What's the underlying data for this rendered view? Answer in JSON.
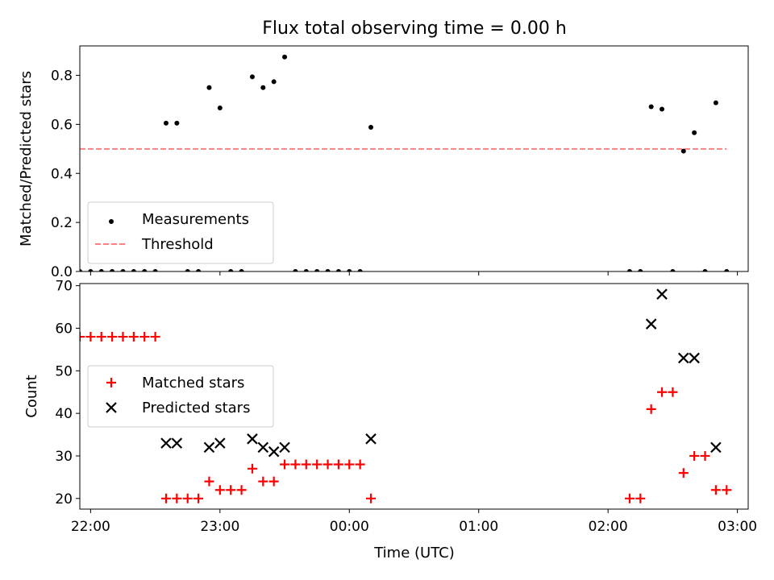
{
  "figure": {
    "title": "Flux total observing time = 0.00 h"
  },
  "chart_data": [
    {
      "type": "scatter",
      "ylabel": "Matched/Predicted stars",
      "xlim": [
        "21:55",
        "03:05"
      ],
      "ylim": [
        0.0,
        0.92
      ],
      "yticks": [
        0.0,
        0.2,
        0.4,
        0.6,
        0.8
      ],
      "ytick_labels": [
        "0.0",
        "0.2",
        "0.4",
        "0.6",
        "0.8"
      ],
      "xtick_labels_visible": false,
      "legend_position": "lower left",
      "threshold": {
        "name": "Threshold",
        "value": 0.5,
        "x": [
          "21:55",
          "02:55"
        ],
        "color": "#ff8080",
        "style": "dashed"
      },
      "series": [
        {
          "name": "Measurements",
          "color": "#000000",
          "marker": "dot",
          "points": [
            [
              "21:55",
              0.0
            ],
            [
              "22:00",
              0.0
            ],
            [
              "22:05",
              0.0
            ],
            [
              "22:10",
              0.0
            ],
            [
              "22:15",
              0.0
            ],
            [
              "22:20",
              0.0
            ],
            [
              "22:25",
              0.0
            ],
            [
              "22:30",
              0.0
            ],
            [
              "22:35",
              0.605
            ],
            [
              "22:40",
              0.605
            ],
            [
              "22:45",
              0.0
            ],
            [
              "22:50",
              0.0
            ],
            [
              "22:55",
              0.75
            ],
            [
              "23:00",
              0.667
            ],
            [
              "23:05",
              0.0
            ],
            [
              "23:10",
              0.0
            ],
            [
              "23:15",
              0.794
            ],
            [
              "23:20",
              0.75
            ],
            [
              "23:25",
              0.774
            ],
            [
              "23:30",
              0.875
            ],
            [
              "23:35",
              0.0
            ],
            [
              "23:40",
              0.0
            ],
            [
              "23:45",
              0.0
            ],
            [
              "23:50",
              0.0
            ],
            [
              "23:55",
              0.0
            ],
            [
              "00:00",
              0.0
            ],
            [
              "00:05",
              0.0
            ],
            [
              "00:10",
              0.588
            ],
            [
              "02:10",
              0.0
            ],
            [
              "02:15",
              0.0
            ],
            [
              "02:20",
              0.672
            ],
            [
              "02:25",
              0.662
            ],
            [
              "02:30",
              0.0
            ],
            [
              "02:35",
              0.491
            ],
            [
              "02:40",
              0.566
            ],
            [
              "02:45",
              0.0
            ],
            [
              "02:50",
              0.688
            ],
            [
              "02:55",
              0.0
            ]
          ]
        }
      ]
    },
    {
      "type": "scatter",
      "xlabel": "Time (UTC)",
      "ylabel": "Count",
      "xlim": [
        "21:55",
        "03:05"
      ],
      "ylim": [
        17.5,
        70.5
      ],
      "yticks": [
        20,
        30,
        40,
        50,
        60,
        70
      ],
      "ytick_labels": [
        "20",
        "30",
        "40",
        "50",
        "60",
        "70"
      ],
      "xticks": [
        "22:00",
        "23:00",
        "00:00",
        "01:00",
        "02:00",
        "03:00"
      ],
      "xtick_labels": [
        "22:00",
        "23:00",
        "00:00",
        "01:00",
        "02:00",
        "03:00"
      ],
      "legend_position": "center left",
      "series": [
        {
          "name": "Matched stars",
          "color": "#ff0000",
          "marker": "plus",
          "points": [
            [
              "21:55",
              58
            ],
            [
              "22:00",
              58
            ],
            [
              "22:05",
              58
            ],
            [
              "22:10",
              58
            ],
            [
              "22:15",
              58
            ],
            [
              "22:20",
              58
            ],
            [
              "22:25",
              58
            ],
            [
              "22:30",
              58
            ],
            [
              "22:35",
              20
            ],
            [
              "22:40",
              20
            ],
            [
              "22:45",
              20
            ],
            [
              "22:50",
              20
            ],
            [
              "22:55",
              24
            ],
            [
              "23:00",
              22
            ],
            [
              "23:05",
              22
            ],
            [
              "23:10",
              22
            ],
            [
              "23:15",
              27
            ],
            [
              "23:20",
              24
            ],
            [
              "23:25",
              24
            ],
            [
              "23:30",
              28
            ],
            [
              "23:35",
              28
            ],
            [
              "23:40",
              28
            ],
            [
              "23:45",
              28
            ],
            [
              "23:50",
              28
            ],
            [
              "23:55",
              28
            ],
            [
              "00:00",
              28
            ],
            [
              "00:05",
              28
            ],
            [
              "00:10",
              20
            ],
            [
              "02:10",
              20
            ],
            [
              "02:15",
              20
            ],
            [
              "02:20",
              41
            ],
            [
              "02:25",
              45
            ],
            [
              "02:30",
              45
            ],
            [
              "02:35",
              26
            ],
            [
              "02:40",
              30
            ],
            [
              "02:45",
              30
            ],
            [
              "02:50",
              22
            ],
            [
              "02:55",
              22
            ]
          ]
        },
        {
          "name": "Predicted stars",
          "color": "#000000",
          "marker": "x",
          "points": [
            [
              "22:35",
              33
            ],
            [
              "22:40",
              33
            ],
            [
              "22:55",
              32
            ],
            [
              "23:00",
              33
            ],
            [
              "23:15",
              34
            ],
            [
              "23:20",
              32
            ],
            [
              "23:25",
              31
            ],
            [
              "23:30",
              32
            ],
            [
              "00:10",
              34
            ],
            [
              "02:20",
              61
            ],
            [
              "02:25",
              68
            ],
            [
              "02:35",
              53
            ],
            [
              "02:40",
              53
            ],
            [
              "02:50",
              32
            ]
          ]
        }
      ]
    }
  ]
}
